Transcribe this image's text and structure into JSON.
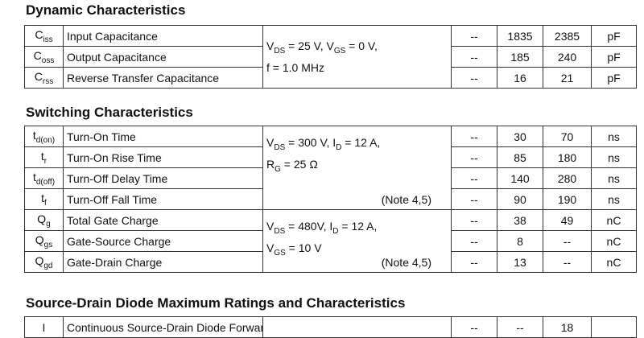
{
  "sections": [
    {
      "title": "Dynamic Characteristics",
      "groups": [
        {
          "conditions": [
            [
              {
                "text": "V"
              },
              {
                "text": "DS",
                "sub": true
              },
              {
                "text": " = 25 V, V"
              },
              {
                "text": "GS",
                "sub": true
              },
              {
                "text": " = 0 V,"
              }
            ],
            [
              {
                "text": "f = 1.0 MHz"
              }
            ]
          ],
          "rows": [
            {
              "symbol": {
                "base": "C",
                "sub": "iss"
              },
              "parameter": "Input Capacitance",
              "min": "--",
              "typ": 1835,
              "max": 2385,
              "unit": "pF"
            },
            {
              "symbol": {
                "base": "C",
                "sub": "oss"
              },
              "parameter": "Output Capacitance",
              "min": "--",
              "typ": 185,
              "max": 240,
              "unit": "pF"
            },
            {
              "symbol": {
                "base": "C",
                "sub": "rss"
              },
              "parameter": "Reverse Transfer Capacitance",
              "min": "--",
              "typ": 16,
              "max": 21,
              "unit": "pF"
            }
          ]
        }
      ]
    },
    {
      "title": "Switching Characteristics",
      "groups": [
        {
          "conditions": [
            [
              {
                "text": "V"
              },
              {
                "text": "DS",
                "sub": true
              },
              {
                "text": " = 300 V, I"
              },
              {
                "text": "D",
                "sub": true
              },
              {
                "text": " = 12 A,"
              }
            ],
            [
              {
                "text": "R"
              },
              {
                "text": "G",
                "sub": true
              },
              {
                "text": " = 25 Ω"
              }
            ]
          ],
          "note": "(Note 4,5)",
          "rows": [
            {
              "symbol": {
                "base": "t",
                "sub": "d(on)"
              },
              "parameter": "Turn-On Time",
              "min": "--",
              "typ": 30,
              "max": 70,
              "unit": "ns"
            },
            {
              "symbol": {
                "base": "t",
                "sub": "r"
              },
              "parameter": "Turn-On Rise Time",
              "min": "--",
              "typ": 85,
              "max": 180,
              "unit": "ns"
            },
            {
              "symbol": {
                "base": "t",
                "sub": "d(off)"
              },
              "parameter": "Turn-Off Delay Time",
              "min": "--",
              "typ": 140,
              "max": 280,
              "unit": "ns"
            },
            {
              "symbol": {
                "base": "t",
                "sub": "f"
              },
              "parameter": "Turn-Off Fall Time",
              "min": "--",
              "typ": 90,
              "max": 190,
              "unit": "ns"
            }
          ]
        },
        {
          "conditions": [
            [
              {
                "text": "V"
              },
              {
                "text": "DS",
                "sub": true
              },
              {
                "text": " = 480V, I"
              },
              {
                "text": "D",
                "sub": true
              },
              {
                "text": " = 12 A,"
              }
            ],
            [
              {
                "text": "V"
              },
              {
                "text": "GS",
                "sub": true
              },
              {
                "text": " = 10 V"
              }
            ]
          ],
          "note": "(Note 4,5)",
          "rows": [
            {
              "symbol": {
                "base": "Q",
                "sub": "g"
              },
              "parameter": "Total Gate Charge",
              "min": "--",
              "typ": 38,
              "max": 49,
              "unit": "nC"
            },
            {
              "symbol": {
                "base": "Q",
                "sub": "gs"
              },
              "parameter": "Gate-Source Charge",
              "min": "--",
              "typ": 8,
              "max": "--",
              "unit": "nC"
            },
            {
              "symbol": {
                "base": "Q",
                "sub": "gd"
              },
              "parameter": "Gate-Drain Charge",
              "min": "--",
              "typ": 13,
              "max": "--",
              "unit": "nC"
            }
          ]
        }
      ]
    },
    {
      "title": "Source-Drain Diode Maximum Ratings and Characteristics",
      "groups": [
        {
          "conditions": [],
          "rows": [
            {
              "symbol": {
                "base": "I"
              },
              "parameter": "Continuous Source-Drain Diode Forward Current",
              "min": "--",
              "typ": "--",
              "max": 18
            }
          ]
        }
      ]
    }
  ]
}
